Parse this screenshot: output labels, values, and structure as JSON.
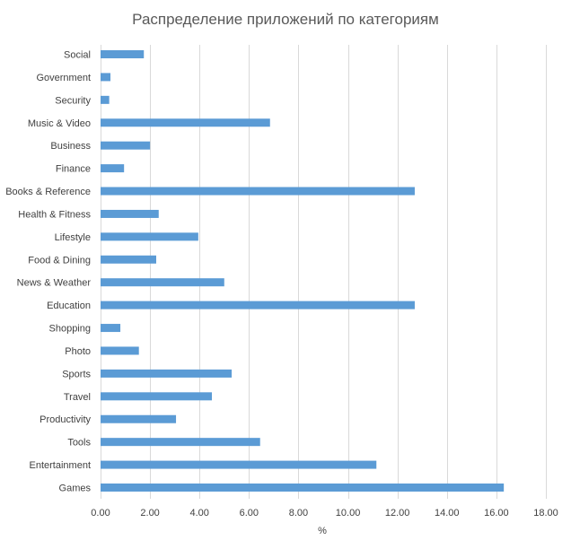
{
  "chart_data": {
    "type": "bar",
    "orientation": "horizontal",
    "title": "Распределение приложений по категориям",
    "xlabel": "%",
    "ylabel": "",
    "xlim": [
      0,
      18
    ],
    "x_ticks": [
      "0.00",
      "2.00",
      "4.00",
      "6.00",
      "8.00",
      "10.00",
      "12.00",
      "14.00",
      "16.00",
      "18.00"
    ],
    "grid": "vertical",
    "legend": "none",
    "bar_color": "#5b9bd5",
    "categories": [
      "Social",
      "Government",
      "Security",
      "Music & Video",
      "Business",
      "Finance",
      "Books & Reference",
      "Health & Fitness",
      "Lifestyle",
      "Food & Dining",
      "News & Weather",
      "Education",
      "Shopping",
      "Photo",
      "Sports",
      "Travel",
      "Productivity",
      "Tools",
      "Entertainment",
      "Games"
    ],
    "values": [
      1.75,
      0.4,
      0.35,
      6.85,
      2.0,
      0.95,
      12.7,
      2.35,
      3.95,
      2.25,
      5.0,
      12.7,
      0.8,
      1.55,
      5.3,
      4.5,
      3.05,
      6.45,
      11.15,
      16.3
    ]
  }
}
